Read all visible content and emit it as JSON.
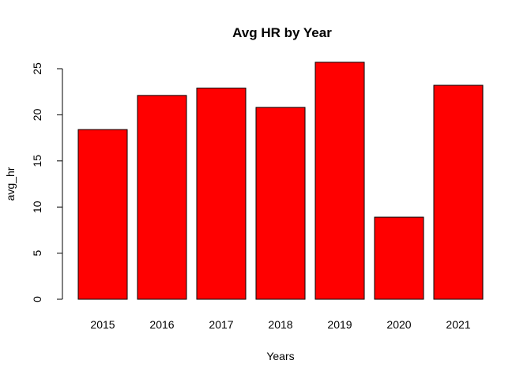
{
  "chart_data": {
    "type": "bar",
    "title": "Avg HR by Year",
    "xlabel": "Years",
    "ylabel": "avg_hr",
    "categories": [
      "2015",
      "2016",
      "2017",
      "2018",
      "2019",
      "2020",
      "2021"
    ],
    "values": [
      18.4,
      22.1,
      22.9,
      20.8,
      25.7,
      8.9,
      23.2
    ],
    "ylim": [
      0,
      25
    ],
    "yticks": [
      "0",
      "5",
      "10",
      "15",
      "20",
      "25"
    ],
    "bar_color": "#ff0000",
    "bar_border_color": "#000000",
    "grid": false,
    "legend": "none"
  }
}
